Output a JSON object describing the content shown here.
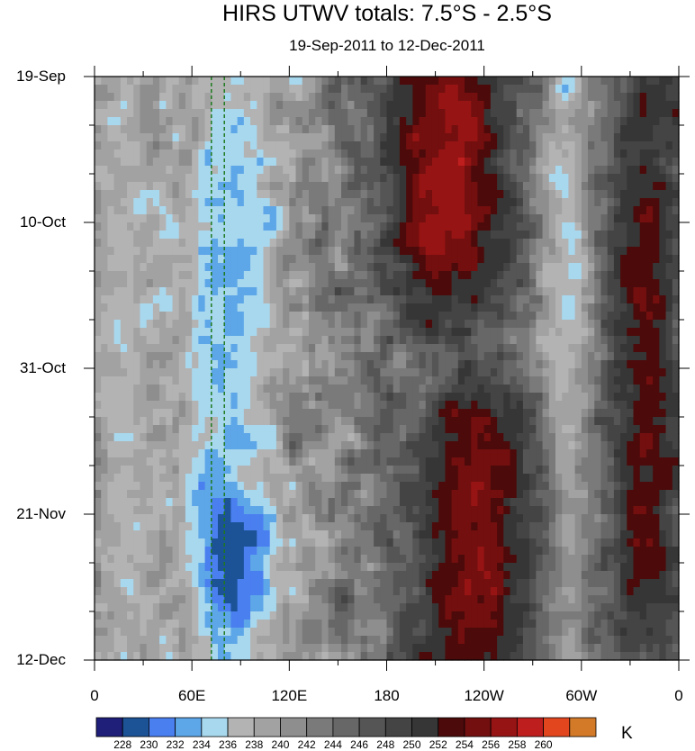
{
  "chart_data": {
    "type": "heatmap",
    "title": "HIRS UTWV totals: 7.5°S - 2.5°S",
    "subtitle": "19-Sep-2011 to 12-Dec-2011",
    "x_ticks": [
      "0",
      "60E",
      "120E",
      "180",
      "120W",
      "60W",
      "0"
    ],
    "x_range_deg_east": [
      0,
      360
    ],
    "y_ticks": [
      "19-Sep",
      "10-Oct",
      "31-Oct",
      "21-Nov",
      "12-Dec"
    ],
    "y_range_days": [
      0,
      84
    ],
    "units": "K",
    "colorbar_levels": [
      "228",
      "230",
      "232",
      "234",
      "236",
      "238",
      "240",
      "242",
      "244",
      "246",
      "248",
      "250",
      "252",
      "254",
      "256",
      "258",
      "260"
    ],
    "colorbar_colors": [
      "#1f1f7a",
      "#1c5296",
      "#4a7ff0",
      "#5da6e8",
      "#a8d8ee",
      "#b3b3b3",
      "#a2a2a2",
      "#8e8e8e",
      "#7a7a7a",
      "#676767",
      "#555555",
      "#444444",
      "#363636",
      "#4d0a0a",
      "#730f0f",
      "#971414",
      "#bf1e1e",
      "#e2461e",
      "#d27a28"
    ],
    "reference_lines_deg_east": [
      72,
      80
    ],
    "reference_line_color": "#1e7a1e",
    "features": [
      {
        "type": "moist_band",
        "lon_deg_east": [
          5,
          30
        ],
        "days": [
          0,
          84
        ],
        "level": "236-240"
      },
      {
        "type": "moist_band",
        "lon_deg_east": [
          55,
          110
        ],
        "days": [
          0,
          84
        ],
        "level": "232-238"
      },
      {
        "type": "moist_band",
        "lon_deg_east": [
          280,
          300
        ],
        "days": [
          0,
          84
        ],
        "level": "232-238"
      },
      {
        "type": "dry_maximum",
        "lon_deg_east": [
          185,
          250
        ],
        "days": [
          0,
          30
        ],
        "level": "256-260"
      },
      {
        "type": "dry_maximum",
        "lon_deg_east": [
          200,
          270
        ],
        "days": [
          48,
          84
        ],
        "level": "254-258"
      },
      {
        "type": "dry_band",
        "lon_deg_east": [
          320,
          360
        ],
        "days": [
          0,
          84
        ],
        "level": "252-256"
      },
      {
        "type": "moist_maximum",
        "lon_deg_east": [
          70,
          100
        ],
        "days": [
          65,
          75
        ],
        "level": "228-232"
      }
    ]
  }
}
